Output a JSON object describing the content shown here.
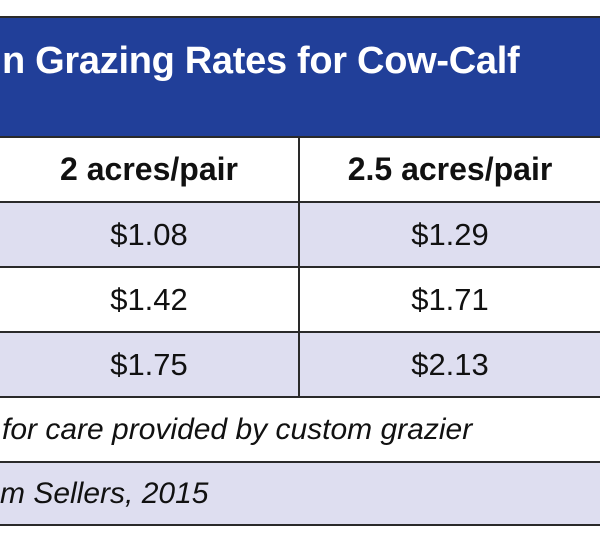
{
  "title": "n Grazing Rates for Cow-Calf",
  "columns": [
    "2 acres/pair",
    "2.5 acres/pair"
  ],
  "rows": [
    [
      "$1.08",
      "$1.29"
    ],
    [
      "$1.42",
      "$1.71"
    ],
    [
      "$1.75",
      "$2.13"
    ]
  ],
  "footnote": "for care provided by custom grazier",
  "source": "m Sellers, 2015",
  "colors": {
    "header_bg": "#213f99",
    "stripe": "#dedef0"
  }
}
